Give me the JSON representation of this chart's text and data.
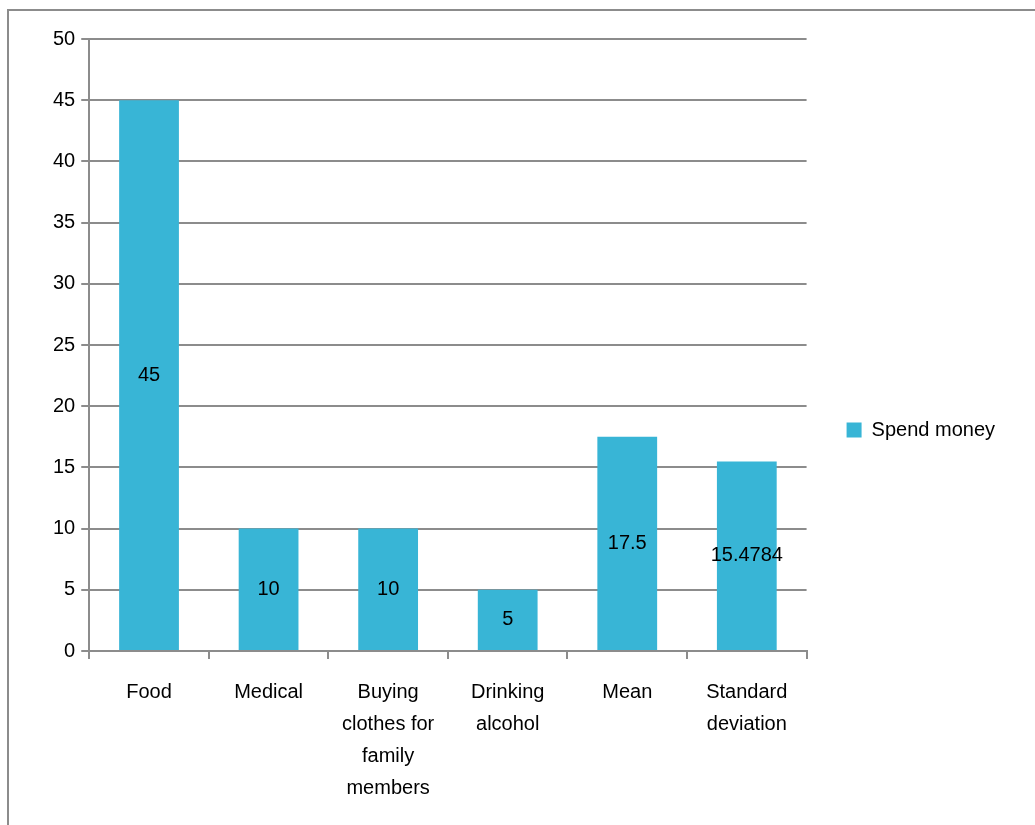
{
  "chart_data": {
    "type": "bar",
    "categories": [
      "Food",
      "Medical",
      "Buying clothes for family members",
      "Drinking alcohol",
      "Mean",
      "Standard deviation"
    ],
    "series": [
      {
        "name": "Spend money",
        "color": "#38b5d6",
        "values": [
          45,
          10,
          10,
          5,
          17.5,
          15.4784
        ]
      }
    ],
    "ylim": [
      0,
      50
    ],
    "yticks": [
      0,
      5,
      10,
      15,
      20,
      25,
      30,
      35,
      40,
      45,
      50
    ],
    "grid": "y",
    "legend": "right",
    "data_labels": true
  }
}
